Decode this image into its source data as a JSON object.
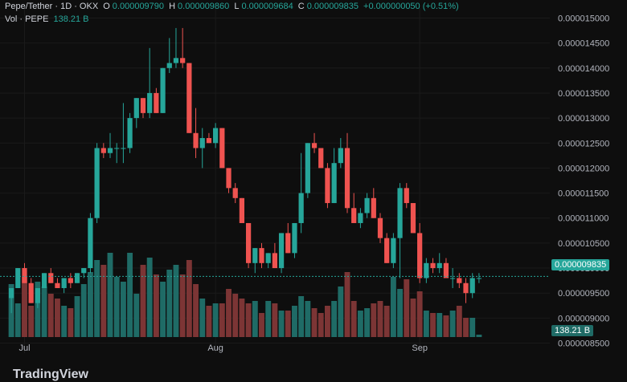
{
  "header": {
    "symbol": "Pepe/Tether · 1D · OKX",
    "o_label": "O",
    "o_value": "0.000009790",
    "h_label": "H",
    "h_value": "0.000009860",
    "l_label": "L",
    "l_value": "0.000009684",
    "c_label": "C",
    "c_value": "0.000009835",
    "change": "+0.000000050 (+0.51%)",
    "vol_label": "Vol · PEPE",
    "vol_value": "138.21 B"
  },
  "badges": {
    "price": "0.000009835",
    "volume": "138.21 B"
  },
  "footer": {
    "logo_text": "TradingView"
  },
  "colors": {
    "up": "#26a69a",
    "down": "#ef5350",
    "up_vol": "#1f6b66",
    "down_vol": "#7c3535",
    "bg": "#0e0e0e"
  },
  "chart_data": {
    "type": "candlestick",
    "y_ticks": [
      "0.000015000",
      "0.000014500",
      "0.000014000",
      "0.000013500",
      "0.000013000",
      "0.000012500",
      "0.000012000",
      "0.000011500",
      "0.000011000",
      "0.000010500",
      "0.000010000",
      "0.000009500",
      "0.000009000",
      "0.000008500"
    ],
    "x_ticks": [
      "Jul",
      "Aug",
      "Sep"
    ],
    "ylim": [
      8.3e-06,
      1.52e-05
    ],
    "last_price": 9.835e-06,
    "ohlc": [
      [
        9.4e-06,
        9.6e-06,
        9.1e-06,
        9.6e-06
      ],
      [
        9.6e-06,
        1e-05,
        9.6e-06,
        1e-05
      ],
      [
        1e-05,
        1.01e-05,
        9.7e-06,
        9.7e-06
      ],
      [
        9.7e-06,
        9.8e-06,
        9.3e-06,
        9.3e-06
      ],
      [
        9.3e-06,
        9.6e-06,
        9.2e-06,
        9.6e-06
      ],
      [
        9.6e-06,
        9.9e-06,
        9.6e-06,
        9.9e-06
      ],
      [
        9.9e-06,
        1e-05,
        9.7e-06,
        9.7e-06
      ],
      [
        9.7e-06,
        9.8e-06,
        9.6e-06,
        9.6e-06
      ],
      [
        9.6e-06,
        9.8e-06,
        9.5e-06,
        9.8e-06
      ],
      [
        9.8e-06,
        9.9e-06,
        9.6e-06,
        9.7e-06
      ],
      [
        9.7e-06,
        9.9e-06,
        9.7e-06,
        9.9e-06
      ],
      [
        9.9e-06,
        1e-05,
        9.8e-06,
        1e-05
      ],
      [
        1e-05,
        1.11e-05,
        9.9e-06,
        1.1e-05
      ],
      [
        1.1e-05,
        1.25e-05,
        1.09e-05,
        1.24e-05
      ],
      [
        1.24e-05,
        1.25e-05,
        1.22e-05,
        1.23e-05
      ],
      [
        1.23e-05,
        1.27e-05,
        1.22e-05,
        1.24e-05
      ],
      [
        1.24e-05,
        1.25e-05,
        1.21e-05,
        1.24e-05
      ],
      [
        1.24e-05,
        1.33e-05,
        1.21e-05,
        1.24e-05
      ],
      [
        1.24e-05,
        1.31e-05,
        1.23e-05,
        1.3e-05
      ],
      [
        1.3e-05,
        1.34e-05,
        1.28e-05,
        1.34e-05
      ],
      [
        1.34e-05,
        1.34e-05,
        1.3e-05,
        1.31e-05
      ],
      [
        1.31e-05,
        1.44e-05,
        1.3e-05,
        1.35e-05
      ],
      [
        1.35e-05,
        1.36e-05,
        1.31e-05,
        1.31e-05
      ],
      [
        1.31e-05,
        1.4e-05,
        1.31e-05,
        1.4e-05
      ],
      [
        1.4e-05,
        1.46e-05,
        1.39e-05,
        1.41e-05
      ],
      [
        1.41e-05,
        1.48e-05,
        1.4e-05,
        1.42e-05
      ],
      [
        1.42e-05,
        1.48e-05,
        1.4e-05,
        1.41e-05
      ],
      [
        1.41e-05,
        1.41e-05,
        1.27e-05,
        1.27e-05
      ],
      [
        1.27e-05,
        1.32e-05,
        1.22e-05,
        1.24e-05
      ],
      [
        1.24e-05,
        1.28e-05,
        1.2e-05,
        1.26e-05
      ],
      [
        1.26e-05,
        1.27e-05,
        1.25e-05,
        1.25e-05
      ],
      [
        1.25e-05,
        1.29e-05,
        1.24e-05,
        1.28e-05
      ],
      [
        1.28e-05,
        1.28e-05,
        1.2e-05,
        1.2e-05
      ],
      [
        1.2e-05,
        1.2e-05,
        1.15e-05,
        1.16e-05
      ],
      [
        1.16e-05,
        1.17e-05,
        1.13e-05,
        1.14e-05
      ],
      [
        1.14e-05,
        1.14e-05,
        1.09e-05,
        1.09e-05
      ],
      [
        1.09e-05,
        1.09e-05,
        1e-05,
        1.01e-05
      ],
      [
        1.01e-05,
        1.04e-05,
        9.9e-06,
        1.04e-05
      ],
      [
        1.04e-05,
        1.05e-05,
        1e-05,
        1.01e-05
      ],
      [
        1.01e-05,
        1.03e-05,
        1e-05,
        1.03e-05
      ],
      [
        1.03e-05,
        1.05e-05,
        1e-05,
        1e-05
      ],
      [
        1e-05,
        1.07e-05,
        9.9e-06,
        1.07e-05
      ],
      [
        1.07e-05,
        1.09e-05,
        1.03e-05,
        1.03e-05
      ],
      [
        1.03e-05,
        1.09e-05,
        1.02e-05,
        1.09e-05
      ],
      [
        1.09e-05,
        1.23e-05,
        1.07e-05,
        1.15e-05
      ],
      [
        1.15e-05,
        1.25e-05,
        1.14e-05,
        1.25e-05
      ],
      [
        1.25e-05,
        1.27e-05,
        1.23e-05,
        1.24e-05
      ],
      [
        1.24e-05,
        1.24e-05,
        1.2e-05,
        1.2e-05
      ],
      [
        1.2e-05,
        1.21e-05,
        1.12e-05,
        1.13e-05
      ],
      [
        1.13e-05,
        1.24e-05,
        1.13e-05,
        1.21e-05
      ],
      [
        1.21e-05,
        1.26e-05,
        1.2e-05,
        1.24e-05
      ],
      [
        1.24e-05,
        1.27e-05,
        1.11e-05,
        1.12e-05
      ],
      [
        1.12e-05,
        1.15e-05,
        1.09e-05,
        1.09e-05
      ],
      [
        1.09e-05,
        1.12e-05,
        1.08e-05,
        1.11e-05
      ],
      [
        1.11e-05,
        1.15e-05,
        1.1e-05,
        1.14e-05
      ],
      [
        1.14e-05,
        1.16e-05,
        1.1e-05,
        1.1e-05
      ],
      [
        1.1e-05,
        1.11e-05,
        1.05e-05,
        1.06e-05
      ],
      [
        1.06e-05,
        1.07e-05,
        1.01e-05,
        1.01e-05
      ],
      [
        1.01e-05,
        1.07e-05,
        1e-05,
        1.06e-05
      ],
      [
        1.06e-05,
        1.17e-05,
        9.8e-06,
        1.16e-05
      ],
      [
        1.16e-05,
        1.17e-05,
        1.12e-05,
        1.13e-05
      ],
      [
        1.13e-05,
        1.13e-05,
        1.07e-05,
        1.07e-05
      ],
      [
        1.07e-05,
        1.09e-05,
        9.7e-06,
        9.8e-06
      ],
      [
        9.8e-06,
        1.02e-05,
        9.7e-06,
        1.01e-05
      ],
      [
        1.01e-05,
        1.02e-05,
        9.9e-06,
        1e-05
      ],
      [
        1e-05,
        1.03e-05,
        9.9e-06,
        1.01e-05
      ],
      [
        1.01e-05,
        1.02e-05,
        9.8e-06,
        9.8e-06
      ],
      [
        9.8e-06,
        1e-05,
        9.6e-06,
        9.8e-06
      ],
      [
        9.8e-06,
        9.9e-06,
        9.6e-06,
        9.7e-06
      ],
      [
        9.7e-06,
        9.8e-06,
        9.3e-06,
        9.5e-06
      ],
      [
        9.5e-06,
        9.9e-06,
        9.4e-06,
        9.8e-06
      ],
      [
        9.8e-06,
        9.9e-06,
        9.7e-06,
        9.8e-06
      ]
    ],
    "volume": [
      22,
      14,
      25,
      13,
      23,
      21,
      18,
      16,
      13,
      12,
      17,
      22,
      27,
      32,
      30,
      35,
      25,
      23,
      35,
      18,
      30,
      33,
      26,
      23,
      28,
      30,
      26,
      32,
      22,
      16,
      13,
      14,
      14,
      20,
      18,
      16,
      14,
      15,
      10,
      15,
      14,
      11,
      11,
      13,
      17,
      15,
      12,
      10,
      13,
      15,
      21,
      27,
      15,
      11,
      12,
      14,
      15,
      13,
      25,
      20,
      24,
      16,
      19,
      11,
      10,
      10,
      9,
      11,
      13,
      8,
      8,
      1
    ]
  }
}
